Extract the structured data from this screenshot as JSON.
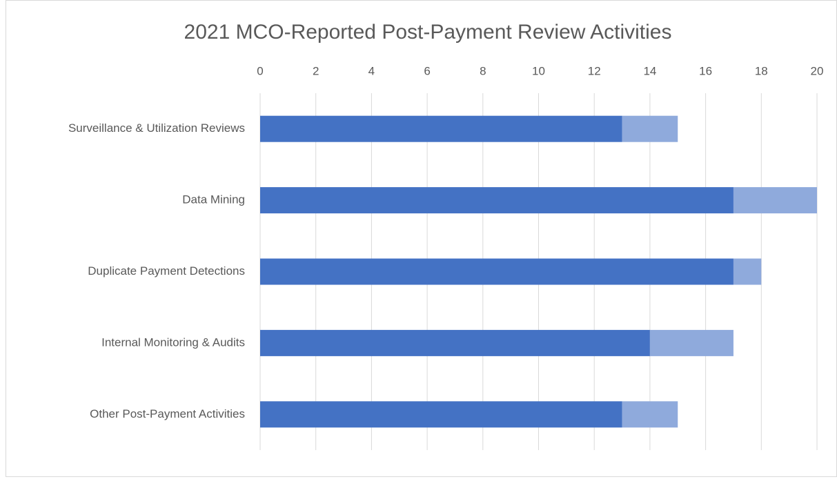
{
  "chart_data": {
    "type": "hbar_stacked",
    "title": "2021 MCO-Reported Post-Payment Review Activities",
    "categories": [
      "Surveillance & Utilization Reviews",
      "Data Mining",
      "Duplicate Payment Detections",
      "Internal Monitoring & Audits",
      "Other Post-Payment Activities"
    ],
    "series": [
      {
        "color": "#4472c4",
        "values": [
          13,
          17,
          17,
          14,
          13
        ]
      },
      {
        "color": "#8faadc",
        "values": [
          2,
          3,
          1,
          3,
          2
        ]
      }
    ],
    "xlim": [
      0,
      20
    ],
    "xticks": [
      0,
      2,
      4,
      6,
      8,
      10,
      12,
      14,
      16,
      18,
      20
    ],
    "grid": true
  }
}
